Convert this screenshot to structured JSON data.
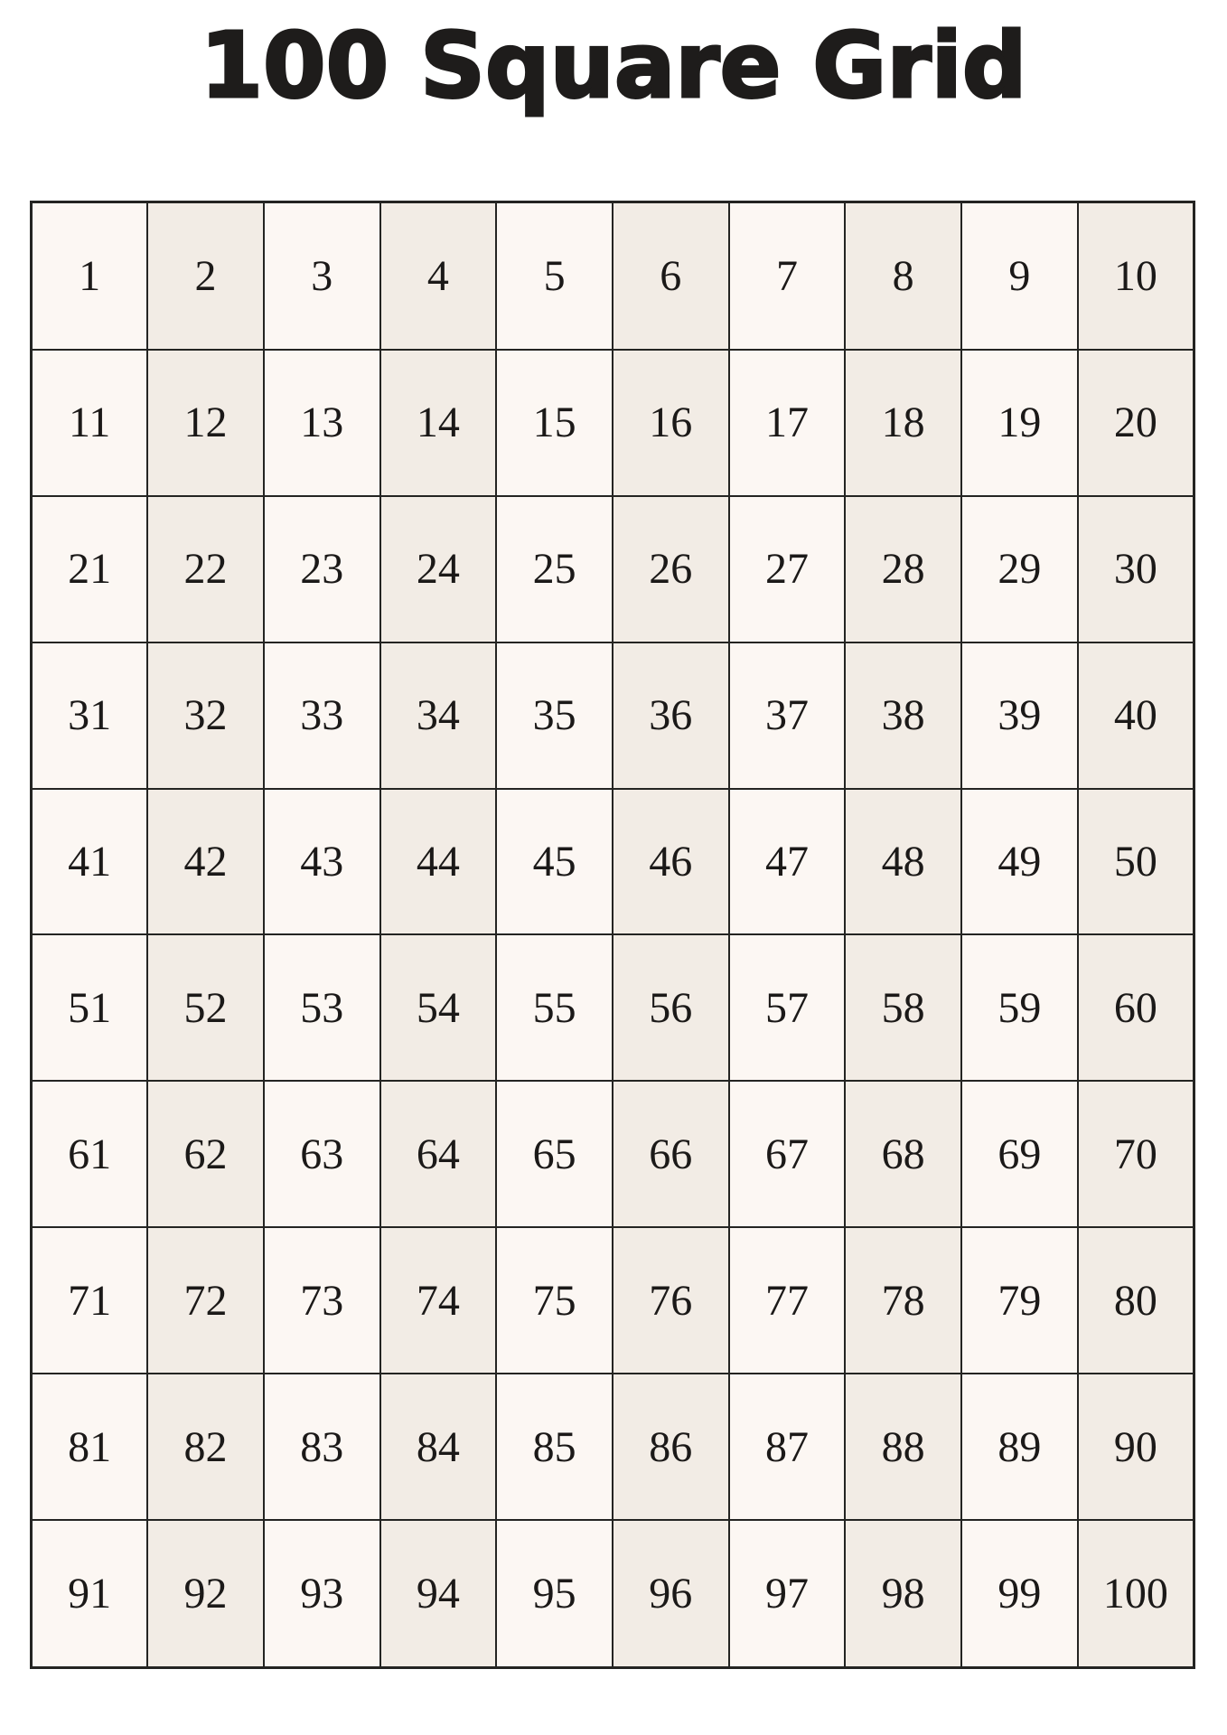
{
  "page": {
    "title": "100 Square Grid",
    "background": "#ffffff"
  },
  "colors": {
    "title": "#1e1c1b",
    "number": "#1b1918",
    "grid_border": "#242422",
    "cell_light": "#fcf7f3",
    "cell_dark": "#f2ece5"
  },
  "grid": {
    "rows_count": 10,
    "columns_count": 10,
    "rows": [
      [
        1,
        2,
        3,
        4,
        5,
        6,
        7,
        8,
        9,
        10
      ],
      [
        11,
        12,
        13,
        14,
        15,
        16,
        17,
        18,
        19,
        20
      ],
      [
        21,
        22,
        23,
        24,
        25,
        26,
        27,
        28,
        29,
        30
      ],
      [
        31,
        32,
        33,
        34,
        35,
        36,
        37,
        38,
        39,
        40
      ],
      [
        41,
        42,
        43,
        44,
        45,
        46,
        47,
        48,
        49,
        50
      ],
      [
        51,
        52,
        53,
        54,
        55,
        56,
        57,
        58,
        59,
        60
      ],
      [
        61,
        62,
        63,
        64,
        65,
        66,
        67,
        68,
        69,
        70
      ],
      [
        71,
        72,
        73,
        74,
        75,
        76,
        77,
        78,
        79,
        80
      ],
      [
        81,
        82,
        83,
        84,
        85,
        86,
        87,
        88,
        89,
        90
      ],
      [
        91,
        92,
        93,
        94,
        95,
        96,
        97,
        98,
        99,
        100
      ]
    ]
  }
}
